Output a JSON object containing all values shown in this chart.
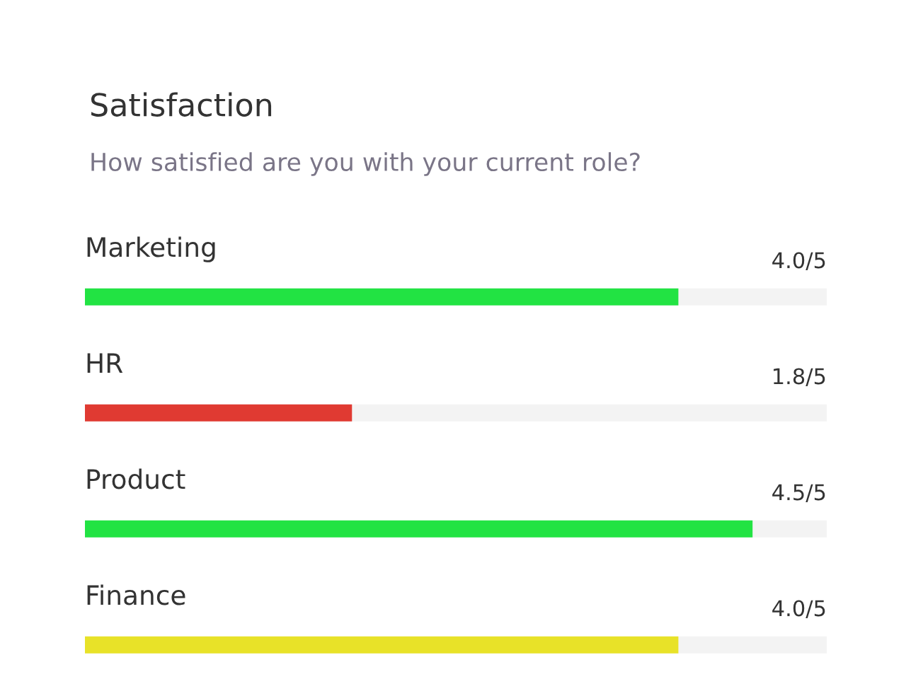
{
  "chart_data": {
    "type": "bar",
    "orientation": "horizontal",
    "title": "Satisfaction",
    "subtitle": "How satisfied are you with your current role?",
    "categories": [
      "Marketing",
      "HR",
      "Product",
      "Finance"
    ],
    "values": [
      4.0,
      1.8,
      4.5,
      4.0
    ],
    "value_labels": [
      "4.0",
      "1.8",
      "4.5",
      "4.0"
    ],
    "annotations": [
      "/5",
      "/5",
      "/5",
      "/5"
    ],
    "colors": [
      "#22e343",
      "#e03a32",
      "#22e343",
      "#e8e228"
    ],
    "xlim": [
      0,
      5
    ],
    "tick_labels": false
  }
}
